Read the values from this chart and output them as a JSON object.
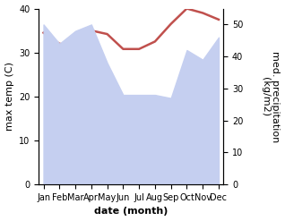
{
  "months": [
    "Jan",
    "Feb",
    "Mar",
    "Apr",
    "May",
    "Jun",
    "Jul",
    "Aug",
    "Sep",
    "Oct",
    "Nov",
    "Dec"
  ],
  "x": [
    0,
    1,
    2,
    3,
    4,
    5,
    6,
    7,
    8,
    9,
    10,
    11
  ],
  "temp": [
    34.5,
    32.0,
    31.5,
    35.0,
    34.2,
    30.8,
    30.8,
    32.5,
    36.5,
    40.0,
    39.0,
    37.5
  ],
  "precip": [
    50.0,
    44.0,
    48.0,
    50.0,
    38.0,
    28.0,
    28.0,
    28.0,
    27.0,
    42.0,
    39.0,
    46.0
  ],
  "temp_color": "#c0504d",
  "precip_fill_color": "#c5cff0",
  "ylim_left": [
    0,
    40
  ],
  "ylim_right": [
    0,
    55
  ],
  "ylabel_left": "max temp (C)",
  "ylabel_right": "med. precipitation\n(kg/m2)",
  "xlabel": "date (month)",
  "label_fontsize": 8,
  "tick_fontsize": 7,
  "right_ticks": [
    0,
    10,
    20,
    30,
    40,
    50
  ],
  "left_ticks": [
    0,
    10,
    20,
    30,
    40
  ],
  "right_tick_labels": [
    "0",
    "10",
    "20",
    "30",
    "40",
    "50"
  ]
}
